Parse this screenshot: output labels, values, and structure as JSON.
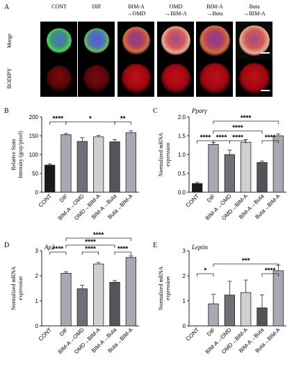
{
  "panel_a": {
    "letter": "A",
    "columns": [
      "CONT",
      "DIF",
      "BIM-A\n→OMD",
      "OMD\n→BIM-A",
      "BIM-A\n→Buta",
      "Buta\n→BIM-A"
    ],
    "rows": [
      "Merge",
      "BODIPY"
    ]
  },
  "chart_data": [
    {
      "panel": "B",
      "type": "bar",
      "title": "",
      "ylabel": "Relative Stain Intensity (gray/pixel)",
      "categories": [
        "CONT",
        "DIF",
        "BIM-A→OMD",
        "OMD→BIM-A",
        "BIM-A→Buta",
        "Buta→BIM-A"
      ],
      "values": [
        72,
        153,
        135,
        147,
        134,
        158
      ],
      "errors": [
        3,
        3,
        10,
        4,
        6,
        5
      ],
      "bar_colors": [
        "#1a1a1a",
        "#a9a9b4",
        "#6f7077",
        "#cfd1cc",
        "#53555b",
        "#a9a9b4"
      ],
      "ylim": [
        0,
        200
      ],
      "yticks": [
        0,
        50,
        100,
        150,
        200
      ],
      "significance": [
        {
          "from": 0,
          "to": 1,
          "label": "****",
          "level": 1
        },
        {
          "from": 1,
          "to": 4,
          "label": "*",
          "level": 1
        },
        {
          "from": 4,
          "to": 5,
          "label": "**",
          "level": 1
        }
      ]
    },
    {
      "panel": "C",
      "type": "bar",
      "title": "Pparγ",
      "ylabel": "Normalized mRNA expression",
      "categories": [
        "CONT",
        "DIF",
        "BIM-A→OMD",
        "OMD→BIM-A",
        "BIM-A→Buta",
        "Buta→BIM-A"
      ],
      "values": [
        0.23,
        1.27,
        1.0,
        1.33,
        0.79,
        1.5
      ],
      "errors": [
        0.03,
        0.05,
        0.12,
        0.07,
        0.04,
        0.05
      ],
      "bar_colors": [
        "#1a1a1a",
        "#a9a9b4",
        "#6f7077",
        "#cfd1cc",
        "#53555b",
        "#a9a9b4"
      ],
      "ylim": [
        0,
        2.0
      ],
      "yticks": [
        0.0,
        0.5,
        1.0,
        1.5,
        2.0
      ],
      "significance": [
        {
          "from": 0,
          "to": 1,
          "label": "****",
          "level": 1
        },
        {
          "from": 1,
          "to": 2,
          "label": "****",
          "level": 1
        },
        {
          "from": 2,
          "to": 3,
          "label": "****",
          "level": 1
        },
        {
          "from": 1,
          "to": 4,
          "label": "****",
          "level": 2
        },
        {
          "from": 4,
          "to": 5,
          "label": "****",
          "level": 1
        },
        {
          "from": 1,
          "to": 5,
          "label": "****",
          "level": 3
        }
      ]
    },
    {
      "panel": "D",
      "type": "bar",
      "title": "Ap2",
      "ylabel": "Normalized mRNA expression",
      "categories": [
        "CONT",
        "DIF",
        "BIM-A→OMD",
        "OMD→BIM-A",
        "BIM-A→Buta",
        "Buta→BIM-A"
      ],
      "values": [
        0,
        2.1,
        1.48,
        2.47,
        1.74,
        2.73
      ],
      "errors": [
        0,
        0.06,
        0.14,
        0.06,
        0.07,
        0.07
      ],
      "bar_colors": [
        "#1a1a1a",
        "#a9a9b4",
        "#6f7077",
        "#cfd1cc",
        "#53555b",
        "#a9a9b4"
      ],
      "ylim": [
        0,
        3
      ],
      "yticks": [
        0,
        1,
        2,
        3
      ],
      "significance": [
        {
          "from": 0,
          "to": 1,
          "label": "****",
          "level": 1
        },
        {
          "from": 2,
          "to": 3,
          "label": "****",
          "level": 1
        },
        {
          "from": 4,
          "to": 5,
          "label": "****",
          "level": 1
        },
        {
          "from": 1,
          "to": 4,
          "label": "****",
          "level": 2
        },
        {
          "from": 1,
          "to": 5,
          "label": "****",
          "level": 3
        }
      ]
    },
    {
      "panel": "E",
      "type": "bar",
      "title": "Leptin",
      "ylabel": "Normalized mRNA expression",
      "categories": [
        "CONT",
        "DIF",
        "BIM-A→OMD",
        "OMD→BIM-A",
        "BIM-A→Buta",
        "Buta→BIM-A"
      ],
      "values": [
        0,
        0.88,
        1.23,
        1.33,
        0.72,
        2.2
      ],
      "errors": [
        0,
        0.38,
        0.55,
        0.5,
        0.52,
        0.22
      ],
      "bar_colors": [
        "#1a1a1a",
        "#a9a9b4",
        "#6f7077",
        "#cfd1cc",
        "#53555b",
        "#a9a9b4"
      ],
      "ylim": [
        0,
        3
      ],
      "yticks": [
        0,
        1,
        2,
        3
      ],
      "significance": [
        {
          "from": 0,
          "to": 1,
          "label": "*",
          "level": 1
        },
        {
          "from": 4,
          "to": 5,
          "label": "****",
          "level": 1
        },
        {
          "from": 1,
          "to": 5,
          "label": "***",
          "level": 2
        }
      ]
    }
  ]
}
